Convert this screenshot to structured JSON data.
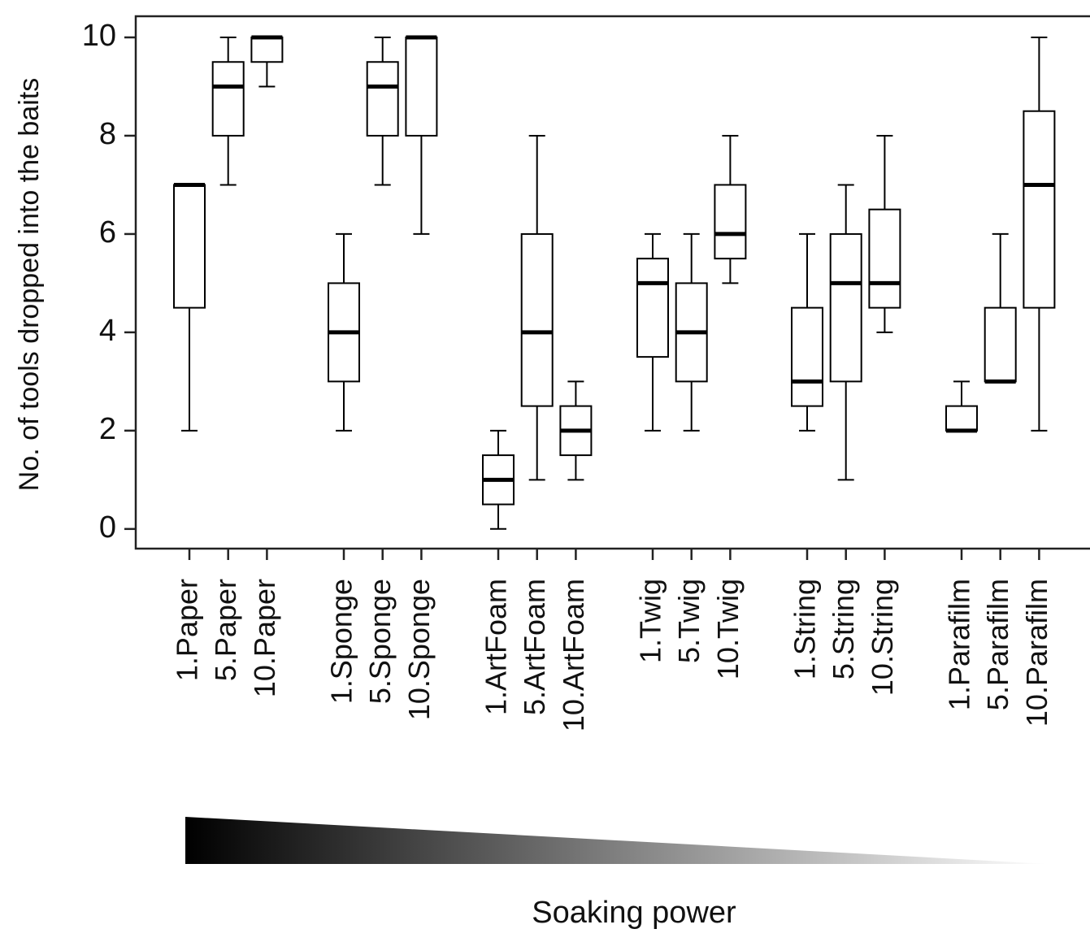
{
  "chart_data": {
    "type": "box",
    "ylabel": "No. of tools dropped into the baits",
    "xlabel": "Soaking power",
    "categories": [
      "1.Paper",
      "5.Paper",
      "10.Paper",
      "1.Sponge",
      "5.Sponge",
      "10.Sponge",
      "1.ArtFoam",
      "5.ArtFoam",
      "10.ArtFoam",
      "1.Twig",
      "5.Twig",
      "10.Twig",
      "1.String",
      "5.String",
      "10.String",
      "1.Parafilm",
      "5.Parafilm",
      "10.Parafilm"
    ],
    "min": [
      2,
      7,
      9,
      2,
      7,
      6,
      0,
      1,
      1,
      2,
      2,
      5,
      2,
      1,
      4,
      2,
      3,
      2
    ],
    "q1": [
      4.5,
      8,
      9.5,
      3,
      8,
      8,
      0.5,
      2.5,
      1.5,
      3.5,
      3,
      5.5,
      2.5,
      3,
      4.5,
      2,
      3,
      4.5
    ],
    "median": [
      7,
      9,
      10,
      4,
      9,
      10,
      1,
      4,
      2,
      5,
      4,
      6,
      3,
      5,
      5,
      2,
      3,
      7
    ],
    "q3": [
      7,
      9.5,
      10,
      5,
      9.5,
      10,
      1.5,
      6,
      2.5,
      5.5,
      5,
      7,
      4.5,
      6,
      6.5,
      2.5,
      4.5,
      8.5
    ],
    "max": [
      7,
      10,
      10,
      6,
      10,
      10,
      2,
      8,
      3,
      6,
      6,
      8,
      6,
      7,
      8,
      3,
      6,
      10
    ],
    "color": "#000000",
    "ylim": [
      -0.4,
      10.43
    ],
    "yticks": [
      0,
      2,
      4,
      6,
      8,
      10
    ]
  }
}
